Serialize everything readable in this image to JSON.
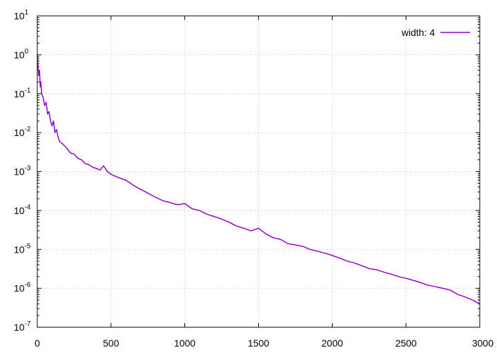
{
  "chart_data": {
    "type": "line",
    "title": "",
    "xlabel": "",
    "ylabel": "",
    "xlim": [
      0,
      3000
    ],
    "ylim": [
      1e-07,
      10
    ],
    "yscale": "log",
    "grid": true,
    "legend_position": "top-right",
    "x_ticks": [
      "0",
      "500",
      "1000",
      "1500",
      "2000",
      "2500",
      "3000"
    ],
    "y_ticks": [
      {
        "base": "10",
        "exp": "1"
      },
      {
        "base": "10",
        "exp": "0"
      },
      {
        "base": "10",
        "exp": "-1"
      },
      {
        "base": "10",
        "exp": "-2"
      },
      {
        "base": "10",
        "exp": "-3"
      },
      {
        "base": "10",
        "exp": "-4"
      },
      {
        "base": "10",
        "exp": "-5"
      },
      {
        "base": "10",
        "exp": "-6"
      },
      {
        "base": "10",
        "exp": "-7"
      }
    ],
    "series": [
      {
        "name": "width: 4",
        "color": "#9400d3",
        "x": [
          0,
          5,
          10,
          15,
          20,
          25,
          30,
          40,
          50,
          60,
          70,
          80,
          90,
          100,
          110,
          120,
          130,
          140,
          150,
          175,
          200,
          225,
          250,
          275,
          300,
          325,
          350,
          375,
          400,
          425,
          450,
          475,
          500,
          550,
          600,
          650,
          700,
          750,
          800,
          850,
          900,
          950,
          1000,
          1050,
          1100,
          1150,
          1200,
          1250,
          1300,
          1350,
          1400,
          1450,
          1500,
          1550,
          1600,
          1650,
          1700,
          1750,
          1800,
          1850,
          1900,
          1950,
          2000,
          2050,
          2100,
          2150,
          2200,
          2250,
          2300,
          2350,
          2400,
          2450,
          2500,
          2550,
          2600,
          2650,
          2700,
          2750,
          2800,
          2850,
          2900,
          2950,
          3000
        ],
        "y": [
          1.0,
          0.5,
          0.3,
          0.4,
          0.15,
          0.2,
          0.1,
          0.08,
          0.05,
          0.06,
          0.03,
          0.035,
          0.02,
          0.015,
          0.02,
          0.01,
          0.012,
          0.008,
          0.006,
          0.005,
          0.004,
          0.003,
          0.0028,
          0.0022,
          0.002,
          0.0016,
          0.0015,
          0.0013,
          0.0012,
          0.0011,
          0.0014,
          0.001,
          0.00085,
          0.0007,
          0.0006,
          0.00045,
          0.00035,
          0.00028,
          0.00022,
          0.00018,
          0.00016,
          0.00014,
          0.00015,
          0.00011,
          0.0001,
          8e-05,
          7e-05,
          6e-05,
          5e-05,
          4e-05,
          3.5e-05,
          3e-05,
          3.5e-05,
          2.5e-05,
          2e-05,
          1.8e-05,
          1.4e-05,
          1.3e-05,
          1.2e-05,
          1e-05,
          9e-06,
          8e-06,
          7e-06,
          6e-06,
          5e-06,
          4.5e-06,
          3.8e-06,
          3.2e-06,
          3e-06,
          2.6e-06,
          2.3e-06,
          2e-06,
          1.8e-06,
          1.6e-06,
          1.4e-06,
          1.2e-06,
          1.1e-06,
          1e-06,
          9e-07,
          7e-07,
          6e-07,
          5e-07,
          4e-07
        ]
      }
    ]
  }
}
